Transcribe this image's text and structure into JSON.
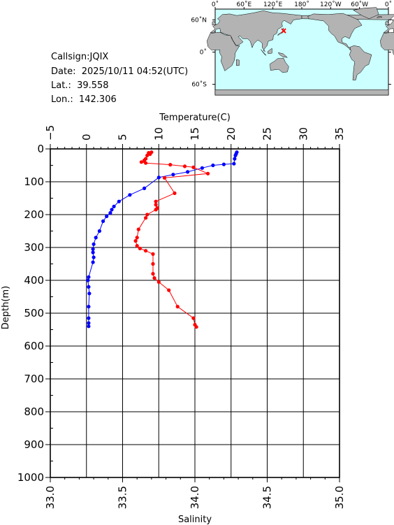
{
  "header": {
    "callsign": "Callsign:JQIX",
    "date": "Date:  2025/10/11 04:52(UTC)",
    "lat": "Lat.:  39.558",
    "lon": "Lon.:  142.306"
  },
  "map": {
    "top_labels": [
      "0˚",
      "60˚E",
      "120˚E",
      "180˚",
      "120˚W",
      "60˚W",
      "0˚"
    ],
    "left_labels": [
      "60˚N",
      "0˚",
      "60˚S"
    ],
    "ocean_color": "#ccffff",
    "land_color": "#b3b3b3",
    "marker_color": "#ff0000",
    "station": {
      "lon": 142.306,
      "lat": 39.558
    }
  },
  "chart_data": {
    "type": "line",
    "top_axis": {
      "label": "Temperature(C)",
      "range": [
        -5,
        35
      ],
      "ticks": [
        "−5",
        "0",
        "5",
        "10",
        "15",
        "20",
        "25",
        "30",
        "35"
      ],
      "tick_values": [
        -5,
        0,
        5,
        10,
        15,
        20,
        25,
        30,
        35
      ]
    },
    "bottom_axis": {
      "label": "Salinity",
      "range": [
        33.0,
        35.0
      ],
      "ticks": [
        "33.0",
        "33.5",
        "34.0",
        "34.5",
        "35.0"
      ],
      "tick_values": [
        33.0,
        33.5,
        34.0,
        34.5,
        35.0
      ]
    },
    "left_axis": {
      "label": "Depth(m)",
      "range": [
        0,
        1000
      ],
      "inverted": true,
      "ticks": [
        "0",
        "100",
        "200",
        "300",
        "400",
        "500",
        "600",
        "700",
        "800",
        "900",
        "1000"
      ],
      "tick_values": [
        0,
        100,
        200,
        300,
        400,
        500,
        600,
        700,
        800,
        900,
        1000
      ]
    },
    "grid": true,
    "series": [
      {
        "axis": "top",
        "color": "#0000ff",
        "points": [
          [
            20.8,
            10
          ],
          [
            20.7,
            15
          ],
          [
            20.6,
            20
          ],
          [
            20.5,
            30
          ],
          [
            20.4,
            45
          ],
          [
            19.0,
            47
          ],
          [
            17.5,
            50
          ],
          [
            16.0,
            58
          ],
          [
            14.0,
            70
          ],
          [
            12.0,
            78
          ],
          [
            10.0,
            87
          ],
          [
            8.0,
            120
          ],
          [
            6.0,
            140
          ],
          [
            4.5,
            160
          ],
          [
            3.8,
            175
          ],
          [
            3.5,
            185
          ],
          [
            3.3,
            195
          ],
          [
            2.8,
            205
          ],
          [
            2.3,
            220
          ],
          [
            1.8,
            250
          ],
          [
            1.3,
            270
          ],
          [
            1.0,
            290
          ],
          [
            0.9,
            305
          ],
          [
            0.9,
            315
          ],
          [
            1.0,
            330
          ],
          [
            0.9,
            345
          ],
          [
            0.3,
            390
          ],
          [
            0.2,
            400
          ],
          [
            0.3,
            420
          ],
          [
            0.4,
            440
          ],
          [
            0.3,
            480
          ],
          [
            0.3,
            515
          ],
          [
            0.3,
            530
          ],
          [
            0.3,
            540
          ]
        ]
      },
      {
        "axis": "bottom",
        "color": "#ff0000",
        "points": [
          [
            33.7,
            10
          ],
          [
            33.68,
            12
          ],
          [
            33.69,
            16
          ],
          [
            33.67,
            20
          ],
          [
            33.66,
            30
          ],
          [
            33.65,
            35
          ],
          [
            33.63,
            40
          ],
          [
            33.66,
            43
          ],
          [
            33.83,
            48
          ],
          [
            33.93,
            53
          ],
          [
            33.99,
            56
          ],
          [
            34.09,
            75
          ],
          [
            33.79,
            88
          ],
          [
            33.86,
            135
          ],
          [
            33.73,
            160
          ],
          [
            33.73,
            170
          ],
          [
            33.74,
            180
          ],
          [
            33.73,
            185
          ],
          [
            33.67,
            200
          ],
          [
            33.66,
            210
          ],
          [
            33.61,
            245
          ],
          [
            33.6,
            270
          ],
          [
            33.59,
            280
          ],
          [
            33.6,
            295
          ],
          [
            33.62,
            303
          ],
          [
            33.66,
            310
          ],
          [
            33.71,
            320
          ],
          [
            33.71,
            350
          ],
          [
            33.71,
            380
          ],
          [
            33.72,
            393
          ],
          [
            33.75,
            405
          ],
          [
            33.82,
            430
          ],
          [
            33.88,
            480
          ],
          [
            33.99,
            515
          ],
          [
            34.0,
            535
          ],
          [
            34.01,
            542
          ]
        ]
      }
    ]
  }
}
